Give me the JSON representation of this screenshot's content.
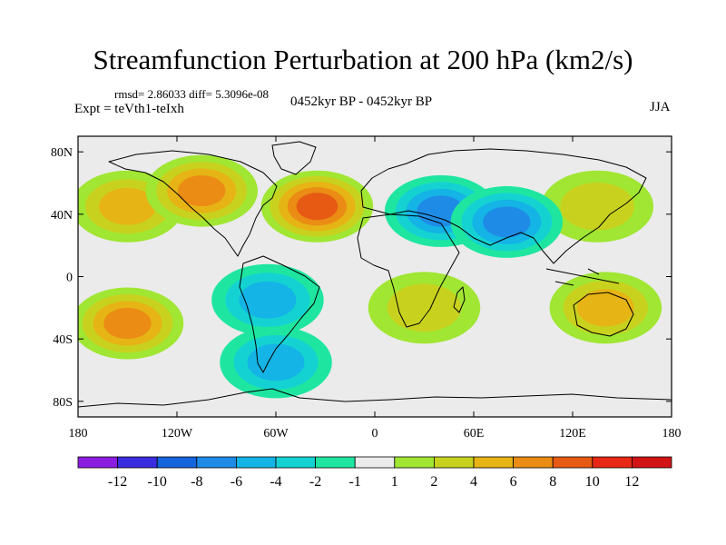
{
  "title": "Streamfunction Perturbation at 200 hPa (km2/s)",
  "stats": "rmsd= 2.86033 diff= 5.3096e-08",
  "experiment": "Expt = teVth1-teIxh",
  "period": "0452kyr BP - 0452kyr BP",
  "season": "JJA",
  "map": {
    "lat_ticks": [
      "80N",
      "40N",
      "0",
      "40S",
      "80S"
    ],
    "lon_ticks": [
      "180",
      "120W",
      "60W",
      "0",
      "60E",
      "120E",
      "180"
    ],
    "lat_values": [
      80,
      40,
      0,
      -40,
      -80
    ],
    "lon_values": [
      -180,
      -120,
      -60,
      0,
      60,
      120,
      180
    ],
    "lat_range": [
      -90,
      90
    ],
    "lon_range": [
      -180,
      180
    ],
    "anomaly_centers": [
      {
        "lon": -35,
        "lat": 45,
        "value": 8
      },
      {
        "lon": -150,
        "lat": 45,
        "value": 4
      },
      {
        "lon": -105,
        "lat": 55,
        "value": 6
      },
      {
        "lon": 135,
        "lat": 45,
        "value": 3
      },
      {
        "lon": 40,
        "lat": 42,
        "value": -6
      },
      {
        "lon": 80,
        "lat": 35,
        "value": -6
      },
      {
        "lon": -65,
        "lat": -15,
        "value": -5
      },
      {
        "lon": 30,
        "lat": -20,
        "value": 3
      },
      {
        "lon": 140,
        "lat": -20,
        "value": 5
      },
      {
        "lon": -150,
        "lat": -30,
        "value": 7
      },
      {
        "lon": -60,
        "lat": -55,
        "value": -4
      }
    ]
  },
  "colorbar": {
    "labels": [
      "-12",
      "-10",
      "-8",
      "-6",
      "-4",
      "-2",
      "-1",
      "1",
      "2",
      "4",
      "6",
      "8",
      "10",
      "12"
    ],
    "colors": [
      "#8b1ee0",
      "#3a2de0",
      "#1464dc",
      "#1e8ce6",
      "#14b4e6",
      "#14d2d2",
      "#1ee6a0",
      "#ebebeb",
      "#a0e632",
      "#c8d21e",
      "#e6b414",
      "#eb8c14",
      "#e65a14",
      "#e62814",
      "#d21414"
    ]
  }
}
